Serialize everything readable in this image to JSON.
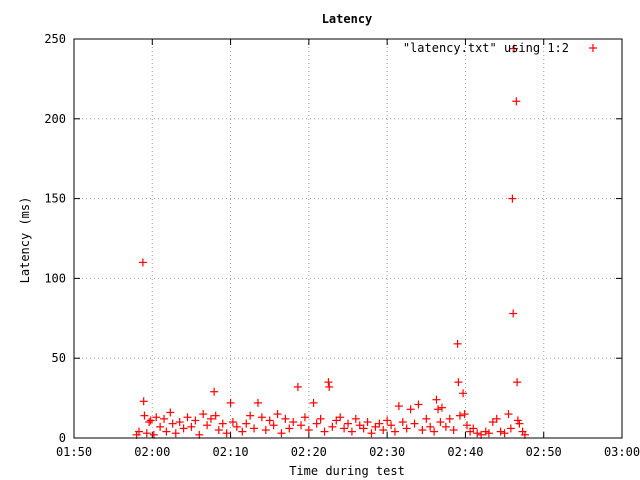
{
  "chart_data": {
    "type": "scatter",
    "title": "Latency",
    "xlabel": "Time during test",
    "ylabel": "Latency (ms)",
    "legend": {
      "label": "\"latency.txt\" using 1:2",
      "placement": "top-right"
    },
    "x_ticks": [
      "01:50",
      "02:00",
      "02:10",
      "02:20",
      "02:30",
      "02:40",
      "02:50",
      "03:00"
    ],
    "y_ticks": [
      0,
      50,
      100,
      150,
      200,
      250
    ],
    "xlim_minutes": [
      0,
      70
    ],
    "ylim": [
      0,
      250
    ],
    "grid": true,
    "marker": "+",
    "series_color": "#ff0000",
    "series": [
      {
        "name": "\"latency.txt\" using 1:2",
        "points": [
          [
            8.0,
            2
          ],
          [
            8.3,
            4
          ],
          [
            8.8,
            110
          ],
          [
            8.9,
            23
          ],
          [
            9.0,
            14
          ],
          [
            9.3,
            3
          ],
          [
            9.6,
            10
          ],
          [
            9.8,
            11
          ],
          [
            10.2,
            2
          ],
          [
            10.5,
            13
          ],
          [
            11.0,
            7
          ],
          [
            11.5,
            12
          ],
          [
            11.8,
            4
          ],
          [
            12.3,
            16
          ],
          [
            12.6,
            9
          ],
          [
            13.0,
            3
          ],
          [
            13.5,
            10
          ],
          [
            14.0,
            6
          ],
          [
            14.5,
            13
          ],
          [
            15.0,
            7
          ],
          [
            15.5,
            11
          ],
          [
            16.0,
            2
          ],
          [
            16.5,
            15
          ],
          [
            17.0,
            8
          ],
          [
            17.5,
            12
          ],
          [
            17.9,
            29
          ],
          [
            18.1,
            14
          ],
          [
            18.5,
            5
          ],
          [
            19.0,
            9
          ],
          [
            19.5,
            3
          ],
          [
            20.0,
            22
          ],
          [
            20.3,
            10
          ],
          [
            20.8,
            7
          ],
          [
            21.5,
            4
          ],
          [
            22.0,
            9
          ],
          [
            22.5,
            14
          ],
          [
            23.0,
            6
          ],
          [
            23.5,
            22
          ],
          [
            24.0,
            13
          ],
          [
            24.5,
            5
          ],
          [
            25.0,
            11
          ],
          [
            25.5,
            8
          ],
          [
            26.0,
            15
          ],
          [
            26.5,
            3
          ],
          [
            27.0,
            12
          ],
          [
            27.5,
            6
          ],
          [
            28.0,
            10
          ],
          [
            28.6,
            32
          ],
          [
            29.0,
            8
          ],
          [
            29.5,
            13
          ],
          [
            30.0,
            5
          ],
          [
            30.6,
            22
          ],
          [
            31.0,
            9
          ],
          [
            31.5,
            12
          ],
          [
            32.0,
            4
          ],
          [
            32.5,
            35
          ],
          [
            32.6,
            32
          ],
          [
            33.0,
            7
          ],
          [
            33.5,
            11
          ],
          [
            34.0,
            13
          ],
          [
            34.5,
            6
          ],
          [
            35.0,
            9
          ],
          [
            35.5,
            4
          ],
          [
            36.0,
            12
          ],
          [
            36.5,
            8
          ],
          [
            37.0,
            6
          ],
          [
            37.5,
            10
          ],
          [
            38.0,
            3
          ],
          [
            38.5,
            7
          ],
          [
            39.0,
            9
          ],
          [
            39.5,
            5
          ],
          [
            40.0,
            11
          ],
          [
            40.5,
            8
          ],
          [
            41.0,
            4
          ],
          [
            41.5,
            20
          ],
          [
            42.0,
            10
          ],
          [
            42.5,
            6
          ],
          [
            43.0,
            18
          ],
          [
            43.5,
            9
          ],
          [
            44.0,
            21
          ],
          [
            44.5,
            5
          ],
          [
            45.0,
            12
          ],
          [
            45.5,
            7
          ],
          [
            46.0,
            4
          ],
          [
            46.3,
            24
          ],
          [
            46.5,
            18
          ],
          [
            46.8,
            10
          ],
          [
            47.0,
            19
          ],
          [
            47.5,
            7
          ],
          [
            48.0,
            12
          ],
          [
            48.5,
            5
          ],
          [
            49.0,
            59
          ],
          [
            49.1,
            35
          ],
          [
            49.3,
            14
          ],
          [
            49.7,
            28
          ],
          [
            49.9,
            15
          ],
          [
            50.2,
            8
          ],
          [
            50.6,
            4
          ],
          [
            51.0,
            6
          ],
          [
            51.5,
            3
          ],
          [
            52.0,
            2
          ],
          [
            52.6,
            4
          ],
          [
            53.0,
            3
          ],
          [
            53.5,
            10
          ],
          [
            54.0,
            12
          ],
          [
            54.5,
            4
          ],
          [
            55.0,
            3
          ],
          [
            55.5,
            15
          ],
          [
            55.8,
            6
          ],
          [
            56.2,
            244
          ],
          [
            56.0,
            150
          ],
          [
            56.1,
            78
          ],
          [
            56.5,
            211
          ],
          [
            56.6,
            35
          ],
          [
            56.7,
            11
          ],
          [
            56.9,
            9
          ],
          [
            57.3,
            4
          ],
          [
            57.6,
            2
          ]
        ]
      }
    ]
  }
}
